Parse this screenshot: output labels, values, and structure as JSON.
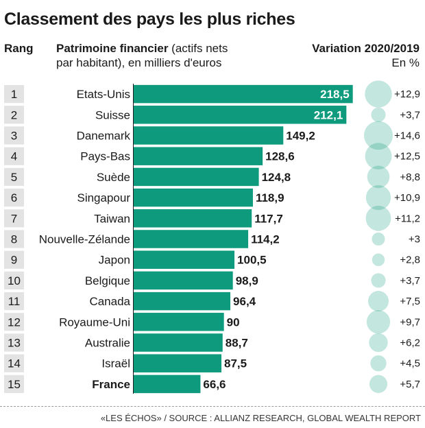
{
  "title": "Classement des pays les plus riches",
  "headers": {
    "rank": "Rang",
    "metric_bold": "Patrimoine financier",
    "metric_rest_line1": " (actifs nets",
    "metric_line2": "par habitant), en milliers d'euros",
    "variation": "Variation 2020/2019",
    "variation_unit": "En %"
  },
  "footer": "«LES ÉCHOS» / SOURCE : ALLIANZ RESEARCH, GLOBAL WEALTH REPORT",
  "colors": {
    "bar": "#0e9a7c",
    "bubble": "#0e9a7c",
    "rank_box": "#e3e3e3"
  },
  "chart_data": {
    "type": "bar",
    "orientation": "horizontal",
    "highlight_category": "France",
    "ranks": [
      "1",
      "2",
      "3",
      "4",
      "5",
      "6",
      "7",
      "8",
      "9",
      "10",
      "11",
      "12",
      "13",
      "14",
      "15"
    ],
    "categories": [
      "Etats-Unis",
      "Suisse",
      "Danemark",
      "Pays-Bas",
      "Suède",
      "Singapour",
      "Taiwan",
      "Nouvelle-Zélande",
      "Japon",
      "Belgique",
      "Canada",
      "Royaume-Uni",
      "Australie",
      "Israël",
      "France"
    ],
    "values": [
      218.5,
      212.1,
      149.2,
      128.6,
      124.8,
      118.9,
      117.7,
      114.2,
      100.5,
      98.9,
      96.4,
      90,
      88.7,
      87.5,
      66.6
    ],
    "value_labels": [
      "218,5",
      "212,1",
      "149,2",
      "128,6",
      "124,8",
      "118,9",
      "117,7",
      "114,2",
      "100,5",
      "98,9",
      "96,4",
      "90",
      "88,7",
      "87,5",
      "66,6"
    ],
    "variation_values": [
      12.9,
      3.7,
      14.6,
      12.5,
      8.8,
      10.9,
      11.2,
      3,
      2.8,
      3.7,
      7.5,
      9.7,
      6.2,
      4.5,
      5.7
    ],
    "variation_labels": [
      "+12,9",
      "+3,7",
      "+14,6",
      "+12,5",
      "+8,8",
      "+10,9",
      "+11,2",
      "+3",
      "+2,8",
      "+3,7",
      "+7,5",
      "+9,7",
      "+6,2",
      "+4,5",
      "+5,7"
    ]
  }
}
